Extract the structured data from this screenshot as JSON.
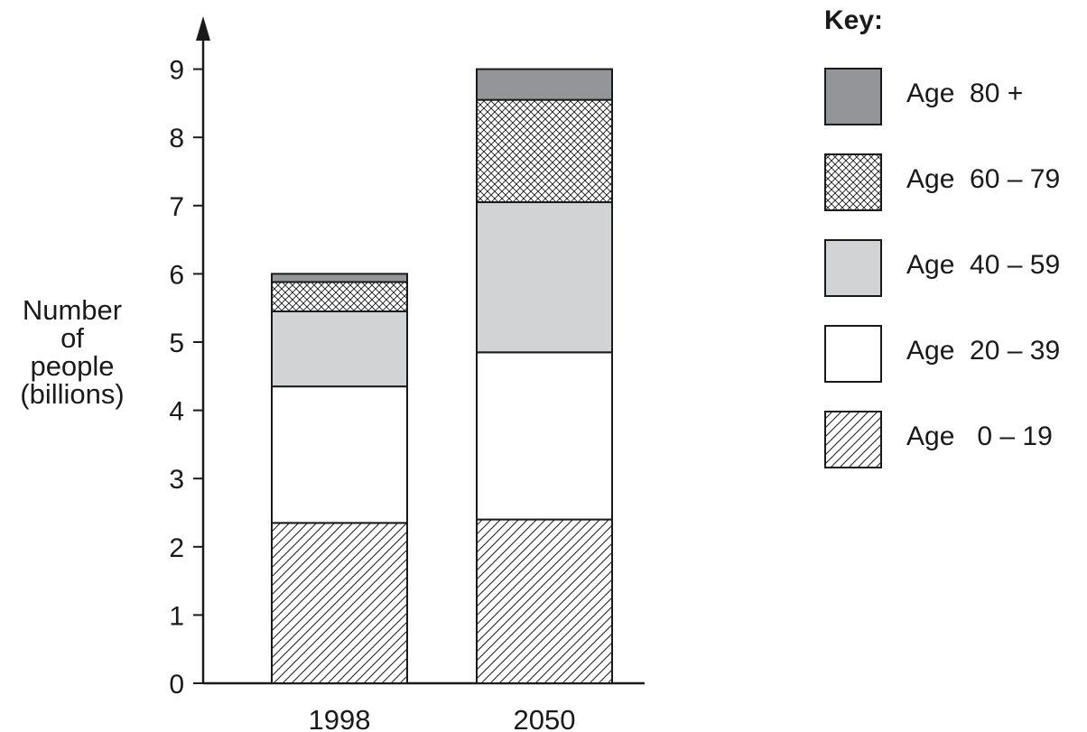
{
  "chart_data": {
    "type": "bar",
    "stacked": true,
    "categories": [
      "1998",
      "2050"
    ],
    "series": [
      {
        "name": "Age   0 – 19",
        "values": [
          2.35,
          2.4
        ],
        "pattern": "diagonal-hatch"
      },
      {
        "name": "Age  20 – 39",
        "values": [
          2.0,
          2.45
        ],
        "pattern": "white"
      },
      {
        "name": "Age  40 – 59",
        "values": [
          1.1,
          2.2
        ],
        "pattern": "light-grey"
      },
      {
        "name": "Age  60 – 79",
        "values": [
          0.43,
          1.5
        ],
        "pattern": "cross-hatch"
      },
      {
        "name": "Age  80 +",
        "values": [
          0.12,
          0.45
        ],
        "pattern": "dark-grey"
      }
    ],
    "ylabel_lines": [
      "Number",
      "of",
      "people",
      "(billions)"
    ],
    "yticks": [
      0,
      1,
      2,
      3,
      4,
      5,
      6,
      7,
      8,
      9
    ],
    "ylim": [
      0,
      9
    ],
    "grid": false,
    "legend_title": "Key:",
    "legend_position": "right",
    "colors": {
      "dark-grey": "#939598",
      "light-grey": "#d1d3d4",
      "white": "#ffffff",
      "stroke": "#1a1a1a"
    }
  }
}
